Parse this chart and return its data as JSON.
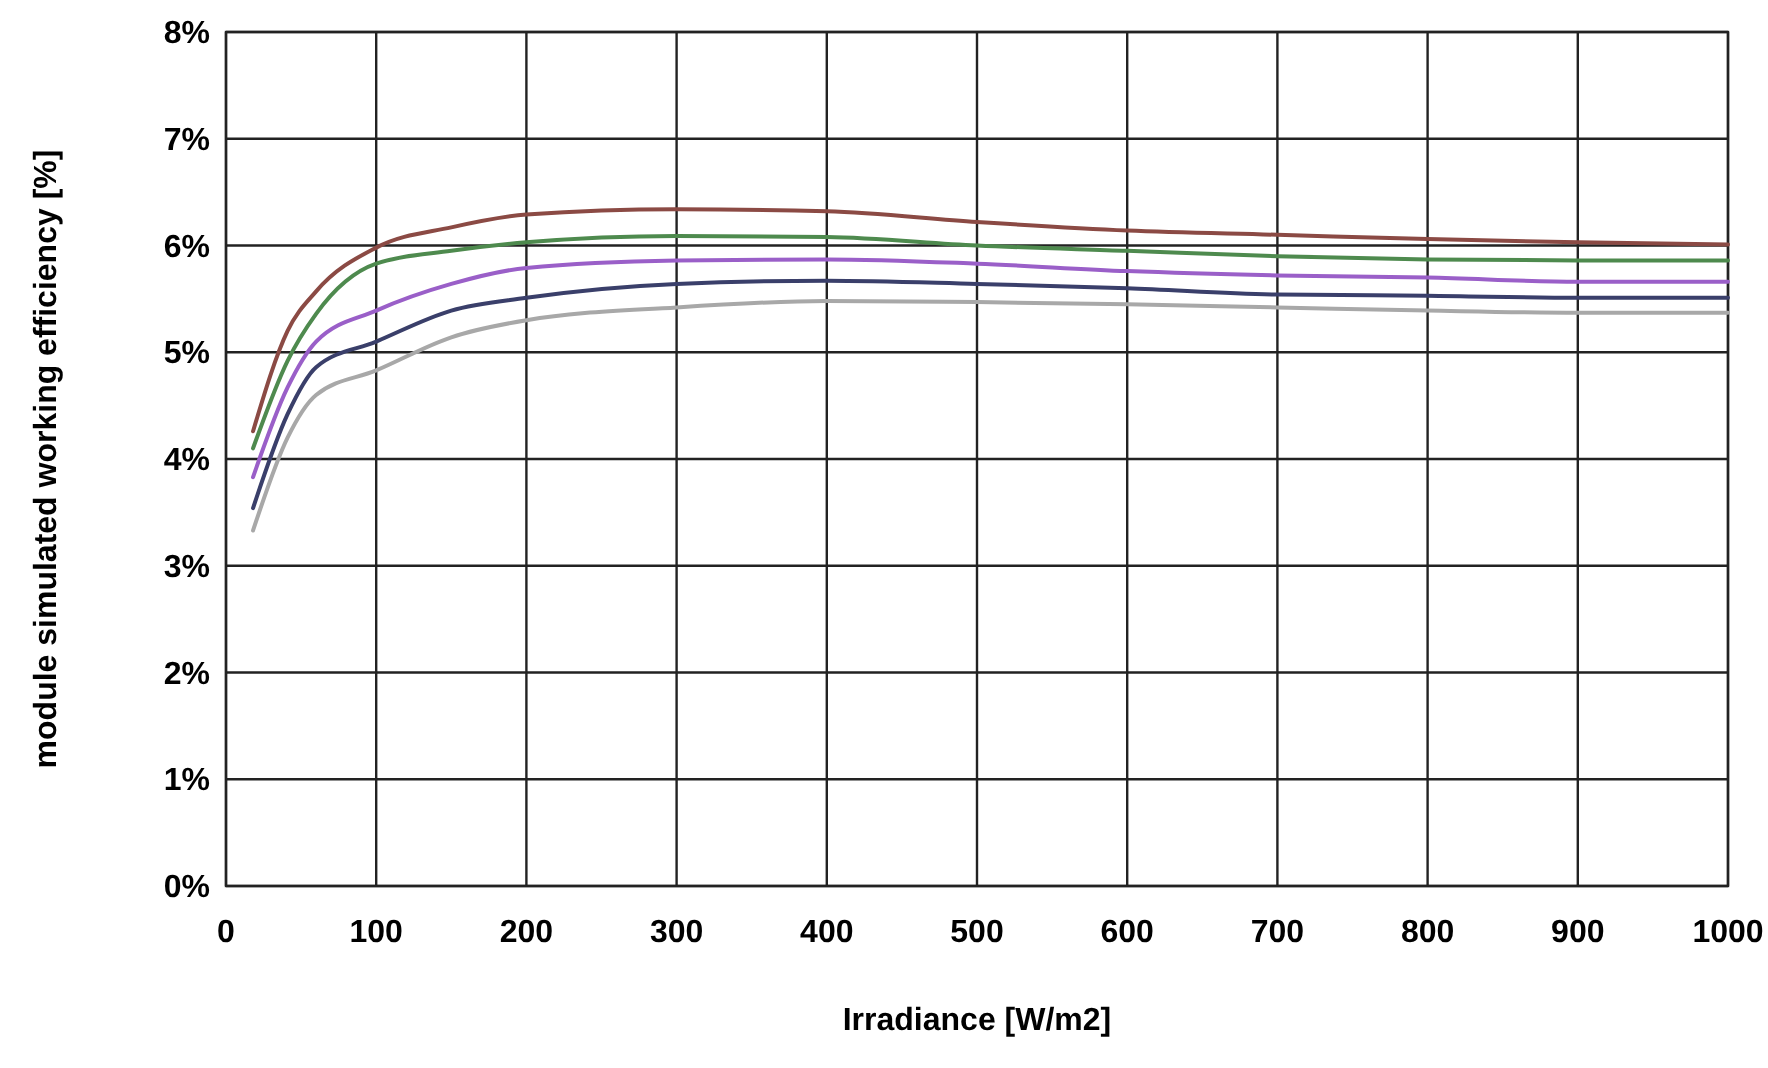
{
  "chart_data": {
    "type": "line",
    "xlabel": "Irradiance [W/m2]",
    "ylabel": "module simulated working efficiency [%]",
    "x": [
      18,
      41,
      60,
      100,
      150,
      200,
      300,
      400,
      500,
      600,
      700,
      800,
      900,
      1000
    ],
    "series": [
      {
        "color": "#8b4a44",
        "values": [
          4.26,
          5.2,
          5.57,
          5.98,
          6.17,
          6.29,
          6.34,
          6.32,
          6.22,
          6.14,
          6.1,
          6.06,
          6.03,
          6.01
        ]
      },
      {
        "color": "#4e8a4e",
        "values": [
          4.1,
          4.92,
          5.36,
          5.83,
          5.95,
          6.03,
          6.09,
          6.08,
          6.0,
          5.95,
          5.9,
          5.87,
          5.86,
          5.86
        ]
      },
      {
        "color": "#9a5fc8",
        "values": [
          3.83,
          4.67,
          5.1,
          5.39,
          5.64,
          5.79,
          5.86,
          5.87,
          5.83,
          5.76,
          5.72,
          5.7,
          5.66,
          5.66
        ]
      },
      {
        "color": "#3a3f6a",
        "values": [
          3.54,
          4.42,
          4.86,
          5.1,
          5.39,
          5.51,
          5.64,
          5.67,
          5.64,
          5.6,
          5.54,
          5.53,
          5.51,
          5.51
        ]
      },
      {
        "color": "#a8a8a8",
        "values": [
          3.33,
          4.2,
          4.6,
          4.83,
          5.14,
          5.3,
          5.42,
          5.48,
          5.47,
          5.45,
          5.42,
          5.39,
          5.37,
          5.37
        ]
      }
    ],
    "xlim": [
      0,
      1000
    ],
    "xticks": [
      0,
      100,
      200,
      300,
      400,
      500,
      600,
      700,
      800,
      900,
      1000
    ],
    "ylim": [
      0,
      8
    ],
    "yticks": [
      {
        "value": 0,
        "label": "0%"
      },
      {
        "value": 1,
        "label": "1%"
      },
      {
        "value": 2,
        "label": "2%"
      },
      {
        "value": 3,
        "label": "3%"
      },
      {
        "value": 4,
        "label": "4%"
      },
      {
        "value": 5,
        "label": "5%"
      },
      {
        "value": 6,
        "label": "6%"
      },
      {
        "value": 7,
        "label": "7%"
      },
      {
        "value": 8,
        "label": "8%"
      }
    ],
    "grid": true,
    "marker": "none",
    "line_style": "solid"
  }
}
